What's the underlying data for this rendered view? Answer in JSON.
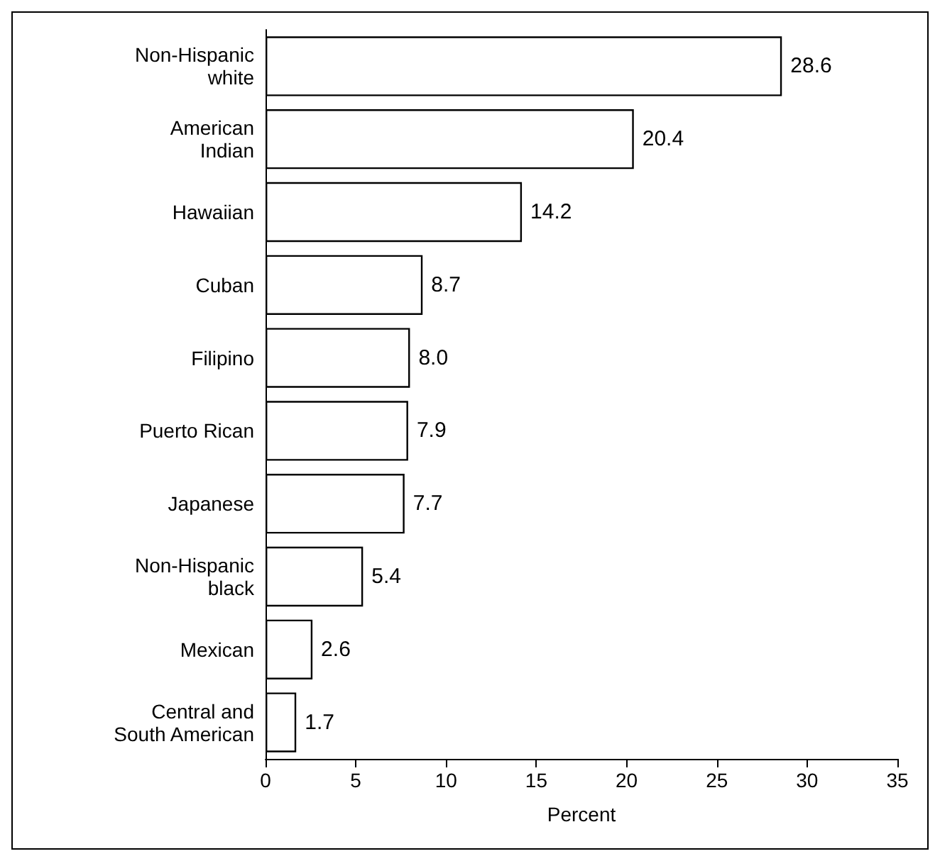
{
  "chart_data": {
    "type": "bar",
    "orientation": "horizontal",
    "xlabel": "Percent",
    "categories": [
      "Non-Hispanic\nwhite",
      "American\nIndian",
      "Hawaiian",
      "Cuban",
      "Filipino",
      "Puerto Rican",
      "Japanese",
      "Non-Hispanic\nblack",
      "Mexican",
      "Central and\nSouth American"
    ],
    "values": [
      28.6,
      20.4,
      14.2,
      8.7,
      8.0,
      7.9,
      7.7,
      5.4,
      2.6,
      1.7
    ],
    "value_labels": [
      "28.6",
      "20.4",
      "14.2",
      "8.7",
      "8.0",
      "7.9",
      "7.7",
      "5.4",
      "2.6",
      "1.7"
    ],
    "color": "#ffffff",
    "xlim": [
      0,
      35
    ],
    "xticks": [
      0,
      5,
      10,
      15,
      20,
      25,
      30,
      35
    ],
    "grid": false
  }
}
